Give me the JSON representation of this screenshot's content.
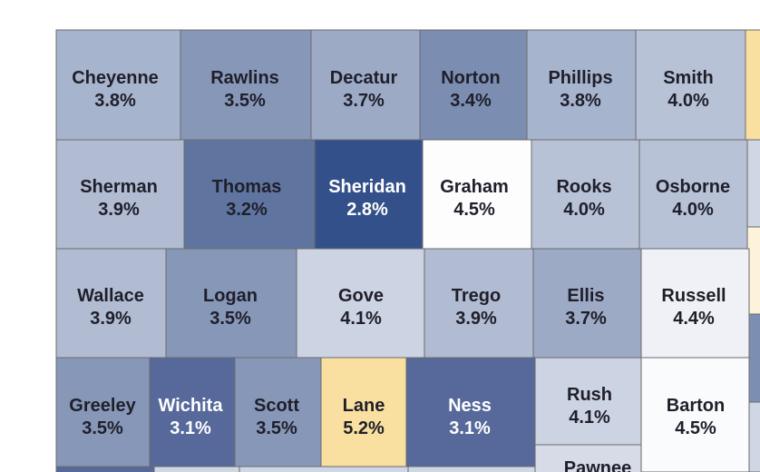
{
  "counties": [
    {
      "name": "Cheyenne",
      "value": "3.8%",
      "fill": "#a7b4cd",
      "text": "#1f1f2a"
    },
    {
      "name": "Rawlins",
      "value": "3.5%",
      "fill": "#8797b8",
      "text": "#1f1f2a"
    },
    {
      "name": "Decatur",
      "value": "3.7%",
      "fill": "#9caac6",
      "text": "#1f1f2a"
    },
    {
      "name": "Norton",
      "value": "3.4%",
      "fill": "#7b8db1",
      "text": "#1f1f2a"
    },
    {
      "name": "Phillips",
      "value": "3.8%",
      "fill": "#a7b4cd",
      "text": "#1f1f2a"
    },
    {
      "name": "Smith",
      "value": "4.0%",
      "fill": "#b8c2d7",
      "text": "#1f1f2a"
    },
    {
      "name": "Sherman",
      "value": "3.9%",
      "fill": "#b1bcd3",
      "text": "#1f1f2a"
    },
    {
      "name": "Thomas",
      "value": "3.2%",
      "fill": "#5f75a0",
      "text": "#1f1f2a"
    },
    {
      "name": "Sheridan",
      "value": "2.8%",
      "fill": "#34508a",
      "text": "#ffffff"
    },
    {
      "name": "Graham",
      "value": "4.5%",
      "fill": "#fdfdfe",
      "text": "#1f1f2a"
    },
    {
      "name": "Rooks",
      "value": "4.0%",
      "fill": "#b8c2d7",
      "text": "#1f1f2a"
    },
    {
      "name": "Osborne",
      "value": "4.0%",
      "fill": "#b8c2d7",
      "text": "#1f1f2a"
    },
    {
      "name": "Wallace",
      "value": "3.9%",
      "fill": "#b1bcd3",
      "text": "#1f1f2a"
    },
    {
      "name": "Logan",
      "value": "3.5%",
      "fill": "#8797b8",
      "text": "#1f1f2a"
    },
    {
      "name": "Gove",
      "value": "4.1%",
      "fill": "#ccd3e2",
      "text": "#1f1f2a"
    },
    {
      "name": "Trego",
      "value": "3.9%",
      "fill": "#b1bcd3",
      "text": "#1f1f2a"
    },
    {
      "name": "Ellis",
      "value": "3.7%",
      "fill": "#9caac6",
      "text": "#1f1f2a"
    },
    {
      "name": "Russell",
      "value": "4.4%",
      "fill": "#eff1f6",
      "text": "#1f1f2a"
    },
    {
      "name": "Greeley",
      "value": "3.5%",
      "fill": "#8797b8",
      "text": "#1f1f2a"
    },
    {
      "name": "Wichita",
      "value": "3.1%",
      "fill": "#56699a",
      "text": "#ffffff"
    },
    {
      "name": "Scott",
      "value": "3.5%",
      "fill": "#8797b8",
      "text": "#1f1f2a"
    },
    {
      "name": "Lane",
      "value": "5.2%",
      "fill": "#f9dfa0",
      "text": "#1f1f2a"
    },
    {
      "name": "Ness",
      "value": "3.1%",
      "fill": "#56699a",
      "text": "#ffffff"
    },
    {
      "name": "Rush",
      "value": "4.1%",
      "fill": "#ccd3e2",
      "text": "#1f1f2a"
    },
    {
      "name": "Barton",
      "value": "4.5%",
      "fill": "#fafbfc",
      "text": "#1f1f2a"
    },
    {
      "name": "Pawnee",
      "value": "",
      "fill": "#d6dbe7",
      "text": "#1f1f2a"
    }
  ],
  "edge_fills": {
    "yellow": "#f9dfa0",
    "cream": "#fcf3da",
    "blue": "#7c8fb3",
    "blue_dark": "#56699a",
    "light": "#cfd6e4"
  }
}
